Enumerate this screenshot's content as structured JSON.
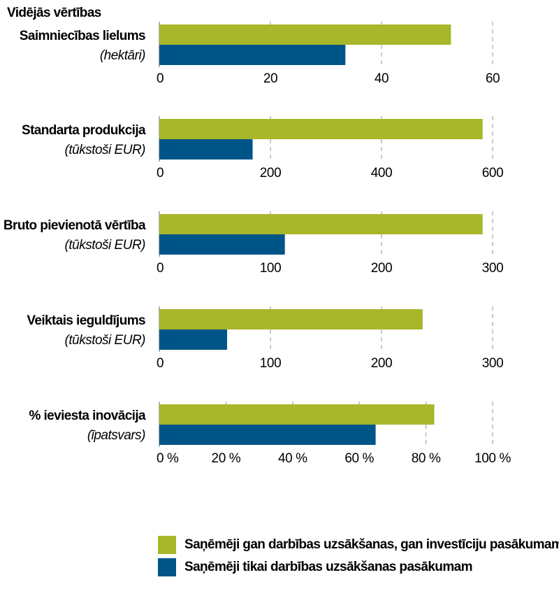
{
  "heading": "Vidējās vērtības",
  "colors": {
    "series_a": "#a8b62a",
    "series_b": "#005588",
    "grid": "#b8b8b8",
    "axis": "#9a9a9a"
  },
  "legend": [
    {
      "label": "Saņēmēji gan darbības uzsākšanas, gan investīciju pasākumam",
      "color": "#a8b62a"
    },
    {
      "label": "Saņēmēji tikai darbības uzsākšanas pasākumam",
      "color": "#005588"
    }
  ],
  "chart_data": [
    {
      "type": "bar",
      "label": "Saimniecības lielums",
      "unit": "(hektāri)",
      "xlim": [
        0,
        60
      ],
      "ticks": [
        0,
        20,
        40,
        60
      ],
      "tick_labels": [
        "0",
        "20",
        "40",
        "60"
      ],
      "series": [
        {
          "name": "Saņēmēji gan darbības uzsākšanas, gan investīciju pasākumam",
          "value": 52.5
        },
        {
          "name": "Saņēmēji tikai darbības uzsākšanas pasākumam",
          "value": 33.5
        }
      ]
    },
    {
      "type": "bar",
      "label": "Standarta produkcija",
      "unit": "(tūkstoši EUR)",
      "xlim": [
        0,
        600
      ],
      "ticks": [
        0,
        200,
        400,
        600
      ],
      "tick_labels": [
        "0",
        "200",
        "400",
        "600"
      ],
      "series": [
        {
          "name": "Saņēmēji gan darbības uzsākšanas, gan investīciju pasākumam",
          "value": 582
        },
        {
          "name": "Saņēmēji tikai darbības uzsākšanas pasākumam",
          "value": 168
        }
      ]
    },
    {
      "type": "bar",
      "label": "Bruto pievienotā vērtība",
      "unit": "(tūkstoši EUR)",
      "xlim": [
        0,
        300
      ],
      "ticks": [
        0,
        100,
        200,
        300
      ],
      "tick_labels": [
        "0",
        "100",
        "200",
        "300"
      ],
      "series": [
        {
          "name": "Saņēmēji gan darbības uzsākšanas, gan investīciju pasākumam",
          "value": 291
        },
        {
          "name": "Saņēmēji tikai darbības uzsākšanas pasākumam",
          "value": 113
        }
      ]
    },
    {
      "type": "bar",
      "label": "Veiktais ieguldījums",
      "unit": "(tūkstoši EUR)",
      "xlim": [
        0,
        300
      ],
      "ticks": [
        0,
        100,
        200,
        300
      ],
      "tick_labels": [
        "0",
        "100",
        "200",
        "300"
      ],
      "series": [
        {
          "name": "Saņēmēji gan darbības uzsākšanas, gan investīciju pasākumam",
          "value": 237
        },
        {
          "name": "Saņēmēji tikai darbības uzsākšanas pasākumam",
          "value": 61
        }
      ]
    },
    {
      "type": "bar",
      "label": "% ieviesta inovācija",
      "unit": "(īpatsvars)",
      "xlim": [
        0,
        100
      ],
      "ticks": [
        0,
        20,
        40,
        60,
        80,
        100
      ],
      "tick_labels": [
        "0 %",
        "20 %",
        "40 %",
        "60 %",
        "80 %",
        "100 %"
      ],
      "series": [
        {
          "name": "Saņēmēji gan darbības uzsākšanas, gan investīciju pasākumam",
          "value": 82.5
        },
        {
          "name": "Saņēmēji tikai darbības uzsākšanas pasākumam",
          "value": 64.9
        }
      ]
    }
  ]
}
